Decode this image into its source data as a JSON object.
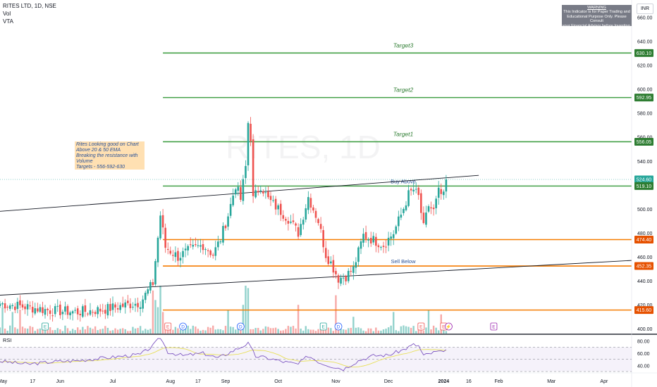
{
  "header": {
    "symbol_line": "RITES LTD, 1D, NSE",
    "indicators": [
      "Vol",
      "VTA"
    ]
  },
  "currency_button": "INR",
  "watermark": "RITES, 1D",
  "note": {
    "lines": [
      "Rites Looking good on Chart",
      "Above 20 & 50 EMA",
      "Breaking the resistance with",
      "Volume",
      "Targets - 556-592-630"
    ]
  },
  "warning_box": {
    "title": "WARNING",
    "lines": [
      "This Indicator is for Paper Trading and",
      "Educational Purpose Only. Please Consult",
      "your Financial Advisor before Investing."
    ]
  },
  "chart_data": {
    "type": "candlestick",
    "price_axis": {
      "range": [
        396,
        672
      ],
      "ticks": [
        400,
        420,
        440,
        460,
        480,
        500,
        520,
        540,
        560,
        580,
        600,
        620,
        640,
        660
      ]
    },
    "x_axis": {
      "ticks": [
        {
          "label": "May",
          "x": 0
        },
        {
          "label": "17",
          "x": 12
        },
        {
          "label": "Jun",
          "x": 23
        },
        {
          "label": "Jul",
          "x": 44
        },
        {
          "label": "Aug",
          "x": 67
        },
        {
          "label": "17",
          "x": 78
        },
        {
          "label": "Sep",
          "x": 89
        },
        {
          "label": "Oct",
          "x": 110
        },
        {
          "label": "Nov",
          "x": 133
        },
        {
          "label": "Dec",
          "x": 154
        },
        {
          "label": "2024",
          "x": 176
        },
        {
          "label": "16",
          "x": 186
        },
        {
          "label": "Feb",
          "x": 198
        },
        {
          "label": "Mar",
          "x": 219
        },
        {
          "label": "Apr",
          "x": 240
        }
      ],
      "range": [
        -1,
        251
      ]
    },
    "levels": [
      {
        "name": "Target3",
        "value": 630.1,
        "color": "#43a047",
        "label": "Target3",
        "x_start": 64
      },
      {
        "name": "Target2",
        "value": 592.95,
        "color": "#43a047",
        "label": "Target2",
        "x_start": 64
      },
      {
        "name": "Target1",
        "value": 556.05,
        "color": "#43a047",
        "label": "Target1",
        "x_start": 64
      },
      {
        "name": "Buy Above",
        "value": 519.1,
        "color": "#43a047",
        "label": "Buy Above",
        "x_start": 64
      },
      {
        "name": "resistance",
        "value": 474.4,
        "color": "#f57c00",
        "label": "",
        "x_start": 64
      },
      {
        "name": "Sell Below",
        "value": 452.35,
        "color": "#f57c00",
        "label": "Sell Below",
        "x_start": 64
      },
      {
        "name": "support",
        "value": 415.6,
        "color": "#f57c00",
        "label": "",
        "x_start": 64
      }
    ],
    "axis_labels": [
      {
        "value": 630.1,
        "text": "630.10",
        "color": "#2e7d32"
      },
      {
        "value": 592.95,
        "text": "592.95",
        "color": "#2e7d32"
      },
      {
        "value": 556.05,
        "text": "556.05",
        "color": "#2e7d32"
      },
      {
        "value": 524.6,
        "text": "524.60",
        "color": "#26a69a"
      },
      {
        "value": 519.1,
        "text": "519.10",
        "color": "#2e7d32"
      },
      {
        "value": 474.4,
        "text": "474.40",
        "color": "#e65100"
      },
      {
        "value": 452.35,
        "text": "452.35",
        "color": "#e65100"
      },
      {
        "value": 415.6,
        "text": "415.60",
        "color": "#e65100"
      }
    ],
    "last_price": 524.6,
    "trendlines": [
      {
        "from": [
          -1,
          498
        ],
        "to": [
          190,
          528
        ]
      },
      {
        "from": [
          -1,
          428
        ],
        "to": [
          251,
          457
        ]
      }
    ],
    "anchors": [
      {
        "x": -1,
        "close": 421
      },
      {
        "x": 10,
        "close": 418
      },
      {
        "x": 20,
        "close": 415
      },
      {
        "x": 30,
        "close": 414
      },
      {
        "x": 40,
        "close": 416
      },
      {
        "x": 55,
        "close": 422
      },
      {
        "x": 60,
        "close": 438
      },
      {
        "x": 63,
        "close": 495
      },
      {
        "x": 65,
        "close": 468
      },
      {
        "x": 70,
        "close": 460
      },
      {
        "x": 75,
        "close": 466
      },
      {
        "x": 80,
        "close": 470
      },
      {
        "x": 84,
        "close": 462
      },
      {
        "x": 87,
        "close": 475
      },
      {
        "x": 90,
        "close": 495
      },
      {
        "x": 93,
        "close": 520
      },
      {
        "x": 95,
        "close": 508
      },
      {
        "x": 97,
        "close": 535
      },
      {
        "x": 98,
        "close": 572
      },
      {
        "x": 99,
        "close": 560
      },
      {
        "x": 100,
        "close": 508
      },
      {
        "x": 103,
        "close": 520
      },
      {
        "x": 106,
        "close": 508
      },
      {
        "x": 110,
        "close": 500
      },
      {
        "x": 114,
        "close": 492
      },
      {
        "x": 118,
        "close": 480
      },
      {
        "x": 120,
        "close": 495
      },
      {
        "x": 122,
        "close": 510
      },
      {
        "x": 126,
        "close": 490
      },
      {
        "x": 129,
        "close": 462
      },
      {
        "x": 131,
        "close": 455
      },
      {
        "x": 134,
        "close": 442
      },
      {
        "x": 137,
        "close": 444
      },
      {
        "x": 140,
        "close": 450
      },
      {
        "x": 144,
        "close": 478
      },
      {
        "x": 148,
        "close": 474
      },
      {
        "x": 152,
        "close": 470
      },
      {
        "x": 156,
        "close": 480
      },
      {
        "x": 159,
        "close": 495
      },
      {
        "x": 162,
        "close": 512
      },
      {
        "x": 164,
        "close": 516
      },
      {
        "x": 166,
        "close": 510
      },
      {
        "x": 168,
        "close": 484
      },
      {
        "x": 170,
        "close": 503
      },
      {
        "x": 172,
        "close": 498
      },
      {
        "x": 174,
        "close": 514
      },
      {
        "x": 176,
        "close": 510
      },
      {
        "x": 177,
        "close": 524.6
      }
    ],
    "last_x": 177,
    "volume": {
      "spikes": {
        "0": 0.55,
        "4": 0.45,
        "7": 0.5,
        "60": 0.9,
        "61": 0.7,
        "62": 0.55,
        "63": 1.0,
        "64": 0.45,
        "90": 0.5,
        "96": 0.6,
        "97": 1.0,
        "98": 0.95,
        "118": 0.6,
        "133": 0.8,
        "140": 0.35,
        "156": 0.45,
        "170": 0.5,
        "175": 0.4
      }
    },
    "events": [
      {
        "x": 17,
        "letter": "E",
        "color": "#26a69a"
      },
      {
        "x": 66,
        "letter": "E",
        "color": "#ef5350"
      },
      {
        "x": 72,
        "letter": "D",
        "color": "#2962ff"
      },
      {
        "x": 95,
        "letter": "D",
        "color": "#2962ff"
      },
      {
        "x": 128,
        "letter": "E",
        "color": "#26a69a"
      },
      {
        "x": 134,
        "letter": "D",
        "color": "#2962ff"
      },
      {
        "x": 167,
        "letter": "E",
        "color": "#ef5350"
      },
      {
        "x": 176,
        "letter": "E",
        "color": "#ef5350"
      },
      {
        "x": 178,
        "letter": "⚡",
        "color": "#9c27b0"
      },
      {
        "x": 196,
        "letter": "E",
        "color": "#9c27b0"
      }
    ],
    "rsi": {
      "label": "RSI",
      "range": [
        30,
        90
      ],
      "ticks": [
        40,
        60,
        80
      ],
      "upper": 70,
      "lower": 30,
      "anchors": [
        {
          "x": -1,
          "v": 47
        },
        {
          "x": 10,
          "v": 42
        },
        {
          "x": 20,
          "v": 46
        },
        {
          "x": 30,
          "v": 48
        },
        {
          "x": 40,
          "v": 52
        },
        {
          "x": 55,
          "v": 58
        },
        {
          "x": 60,
          "v": 72
        },
        {
          "x": 63,
          "v": 86
        },
        {
          "x": 66,
          "v": 62
        },
        {
          "x": 72,
          "v": 56
        },
        {
          "x": 80,
          "v": 60
        },
        {
          "x": 86,
          "v": 52
        },
        {
          "x": 92,
          "v": 64
        },
        {
          "x": 98,
          "v": 76
        },
        {
          "x": 101,
          "v": 55
        },
        {
          "x": 106,
          "v": 52
        },
        {
          "x": 112,
          "v": 46
        },
        {
          "x": 118,
          "v": 42
        },
        {
          "x": 122,
          "v": 56
        },
        {
          "x": 127,
          "v": 44
        },
        {
          "x": 132,
          "v": 38
        },
        {
          "x": 136,
          "v": 34
        },
        {
          "x": 142,
          "v": 48
        },
        {
          "x": 148,
          "v": 56
        },
        {
          "x": 154,
          "v": 57
        },
        {
          "x": 160,
          "v": 66
        },
        {
          "x": 164,
          "v": 74
        },
        {
          "x": 166,
          "v": 72
        },
        {
          "x": 168,
          "v": 56
        },
        {
          "x": 171,
          "v": 60
        },
        {
          "x": 174,
          "v": 63
        },
        {
          "x": 176,
          "v": 60
        },
        {
          "x": 177,
          "v": 66
        }
      ]
    },
    "colors": {
      "up": "#26a69a",
      "down": "#ef5350",
      "rsi_line": "#7e57c2",
      "rsi_ma": "#e8e05a",
      "rsi_band": "rgba(126,87,194,0.08)"
    }
  }
}
